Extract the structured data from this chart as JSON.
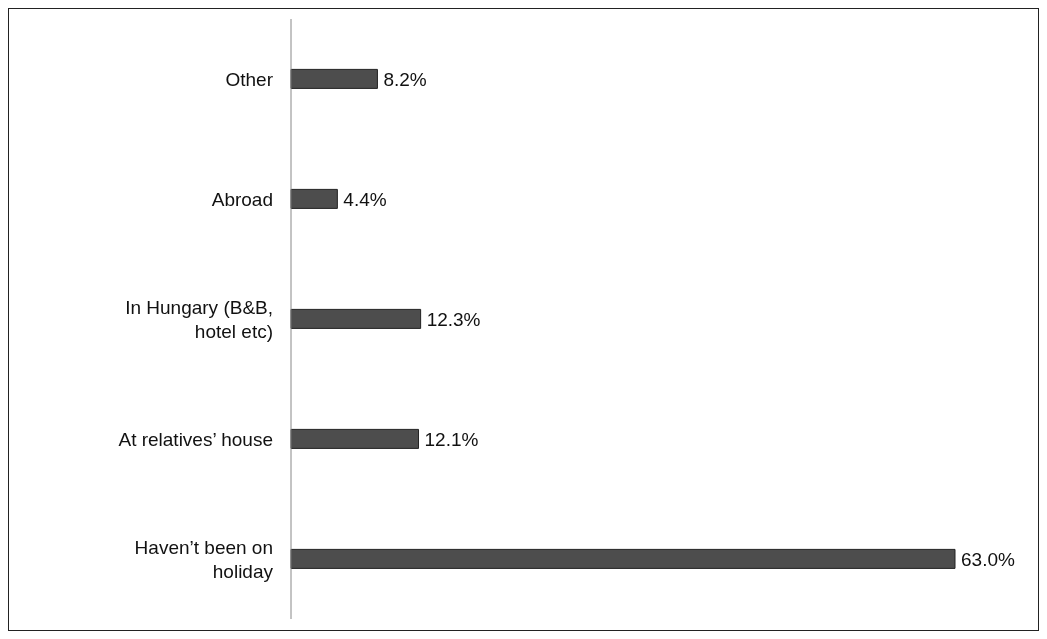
{
  "chart_data": {
    "type": "bar",
    "orientation": "horizontal",
    "categories": [
      "Other",
      "Abroad",
      "In Hungary (B&B, hotel etc)",
      "At relatives’ house",
      "Haven’t been on holiday"
    ],
    "values": [
      8.2,
      4.4,
      12.3,
      12.1,
      63.0
    ],
    "value_labels": [
      "8.2%",
      "4.4%",
      "12.3%",
      "12.1%",
      "63.0%"
    ],
    "color": "#4d4d4d",
    "grid": false,
    "legend": false
  }
}
